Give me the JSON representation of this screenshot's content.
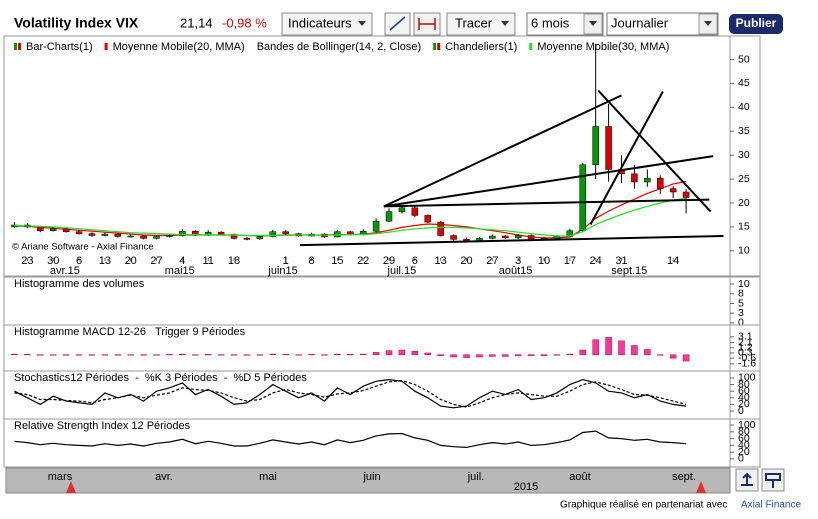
{
  "toolbar": {
    "title": "Volatility Index VIX",
    "last": "21,14",
    "change": "-0,98 %",
    "indicators_button": "Indicateurs",
    "draw_button": "Tracer",
    "period": "6 mois",
    "interval": "Journalier",
    "publish": "Publier"
  },
  "chart_data": [
    {
      "type": "candlestick",
      "copyright": "© Ariane Software - Axial Finance",
      "xlim": [
        -0.5,
        55.4
      ],
      "ylim": [
        8.5,
        54.5
      ],
      "yticks": [
        10,
        15,
        20,
        25,
        30,
        35,
        40,
        45,
        50
      ],
      "xticks": [
        {
          "value": 1,
          "label": "23"
        },
        {
          "value": 3,
          "label": "30"
        },
        {
          "value": 5,
          "label": "6"
        },
        {
          "value": 7,
          "label": "13"
        },
        {
          "value": 9,
          "label": "20"
        },
        {
          "value": 11,
          "label": "27"
        },
        {
          "value": 13,
          "label": "4"
        },
        {
          "value": 15,
          "label": "11"
        },
        {
          "value": 17,
          "label": "18"
        },
        {
          "value": 21,
          "label": "1"
        },
        {
          "value": 23,
          "label": "8"
        },
        {
          "value": 25,
          "label": "15"
        },
        {
          "value": 27,
          "label": "22"
        },
        {
          "value": 29,
          "label": "29"
        },
        {
          "value": 31,
          "label": "6"
        },
        {
          "value": 33,
          "label": "13"
        },
        {
          "value": 35,
          "label": "20"
        },
        {
          "value": 37,
          "label": "27"
        },
        {
          "value": 39,
          "label": "3"
        },
        {
          "value": 41,
          "label": "10"
        },
        {
          "value": 43,
          "label": "17"
        },
        {
          "value": 45,
          "label": "24"
        },
        {
          "value": 47,
          "label": "31"
        },
        {
          "value": 51,
          "label": "14"
        }
      ],
      "month_ticks": [
        {
          "value": 3.9,
          "label": "avr.15"
        },
        {
          "value": 12.8,
          "label": "mai15"
        },
        {
          "value": 20.8,
          "label": "juin15"
        },
        {
          "value": 30,
          "label": "juil.15"
        },
        {
          "value": 38.8,
          "label": "août15"
        },
        {
          "value": 47.6,
          "label": "sept.15"
        }
      ],
      "series": [
        {
          "name": "Bar-Charts(1)",
          "colors": [
            "#009900",
            "#dd0000"
          ]
        },
        {
          "name": "Moyenne Mobile(20, MMA)",
          "color": "#ee0000",
          "values": [
            15.2,
            15.1,
            14.9,
            14.7,
            14.5,
            14.3,
            14.1,
            13.9,
            13.7,
            13.5,
            13.3,
            13.2,
            13.2,
            13.3,
            13.3,
            13.3,
            13.3,
            13.3,
            13.2,
            13.1,
            13.2,
            13.3,
            13.3,
            13.3,
            13.3,
            13.4,
            13.4,
            13.5,
            13.8,
            14.3,
            14.9,
            15.3,
            15.6,
            15.5,
            15.3,
            15.0,
            14.6,
            14.2,
            13.8,
            13.3,
            12.9,
            12.7,
            12.7,
            12.9,
            14.5,
            16.8,
            18.3,
            19.6,
            20.8,
            22.0,
            23.0,
            24.0,
            24.5
          ]
        },
        {
          "name": "Bandes de Bollinger(14, 2, Close)"
        },
        {
          "name": "Chandeliers(1)",
          "colors": [
            "#009900",
            "#dd0000"
          ],
          "open": [
            15.0,
            15.4,
            15.0,
            14.2,
            14.6,
            14.0,
            13.6,
            13.2,
            13.5,
            13.0,
            13.1,
            12.6,
            13.0,
            13.2,
            14.1,
            13.3,
            13.9,
            13.4,
            12.6,
            12.5,
            13.0,
            14.0,
            13.6,
            13.1,
            13.5,
            12.9,
            14.0,
            13.4,
            14.1,
            16.2,
            18.2,
            19.0,
            17.4,
            16.0,
            13.2,
            12.4,
            12.1,
            12.6,
            13.1,
            12.7,
            13.2,
            12.5,
            12.6,
            13.0,
            14.2,
            28.0,
            36.0,
            27.0,
            26.1,
            24.4,
            25.2,
            23.0,
            22.3
          ],
          "high": [
            16.0,
            15.8,
            15.3,
            14.9,
            14.9,
            14.3,
            13.9,
            13.8,
            13.7,
            13.4,
            13.3,
            13.3,
            13.5,
            14.5,
            14.3,
            14.3,
            14.1,
            13.6,
            12.9,
            13.3,
            14.4,
            14.3,
            13.8,
            13.8,
            13.7,
            14.4,
            14.2,
            14.5,
            16.8,
            18.9,
            19.5,
            19.3,
            17.6,
            16.2,
            13.4,
            12.8,
            12.9,
            13.4,
            13.3,
            13.5,
            13.4,
            12.9,
            13.3,
            14.6,
            28.4,
            53.3,
            40.7,
            30.0,
            28.0,
            27.0,
            25.8,
            23.5,
            22.9
          ],
          "low": [
            14.8,
            14.7,
            13.9,
            14.0,
            13.8,
            13.4,
            12.9,
            13.0,
            12.8,
            12.8,
            12.4,
            12.4,
            12.8,
            13.0,
            13.1,
            13.1,
            13.2,
            12.4,
            12.2,
            12.3,
            12.8,
            13.4,
            12.9,
            13.0,
            12.7,
            12.8,
            13.2,
            13.2,
            13.9,
            16.0,
            17.8,
            17.1,
            15.8,
            13.0,
            12.1,
            11.9,
            11.9,
            12.4,
            12.5,
            12.5,
            12.3,
            12.3,
            12.4,
            12.9,
            14.0,
            25.0,
            24.5,
            24.2,
            23.0,
            23.4,
            21.9,
            21.0,
            17.8
          ],
          "close": [
            15.4,
            15.0,
            14.2,
            14.6,
            14.0,
            13.6,
            13.2,
            13.5,
            13.0,
            13.1,
            12.6,
            13.0,
            13.2,
            14.1,
            13.3,
            13.9,
            13.4,
            12.6,
            12.5,
            13.0,
            14.0,
            13.6,
            13.1,
            13.5,
            12.9,
            14.0,
            13.4,
            14.1,
            16.2,
            18.2,
            19.0,
            17.4,
            16.0,
            13.2,
            12.4,
            12.1,
            12.6,
            13.1,
            12.7,
            13.2,
            12.5,
            12.6,
            13.0,
            14.2,
            28.0,
            36.0,
            27.0,
            26.1,
            24.4,
            25.2,
            23.0,
            22.3,
            21.14
          ]
        },
        {
          "name": "Moyenne Mobile(30, MMA)",
          "color": "#22dd22",
          "values": [
            15.3,
            15.2,
            15.1,
            15.0,
            14.8,
            14.6,
            14.4,
            14.2,
            14.0,
            13.8,
            13.7,
            13.6,
            13.5,
            13.4,
            13.4,
            13.3,
            13.3,
            13.3,
            13.2,
            13.2,
            13.2,
            13.2,
            13.3,
            13.3,
            13.3,
            13.3,
            13.4,
            13.4,
            13.6,
            13.9,
            14.3,
            14.6,
            14.8,
            14.9,
            14.9,
            14.8,
            14.6,
            14.4,
            14.2,
            13.9,
            13.6,
            13.3,
            13.1,
            13.1,
            14.0,
            15.5,
            16.6,
            17.6,
            18.5,
            19.3,
            20.0,
            20.6,
            21.0
          ]
        }
      ],
      "trendline_color": "#000000",
      "trendlines": [
        {
          "x": [
            28.6,
            47.0
          ],
          "y": [
            19.3,
            42.5
          ]
        },
        {
          "x": [
            28.6,
            54.1
          ],
          "y": [
            19.3,
            29.8
          ]
        },
        {
          "x": [
            28.6,
            53.8
          ],
          "y": [
            19.3,
            20.7
          ]
        },
        {
          "x": [
            22.1,
            54.9
          ],
          "y": [
            11.2,
            13.1
          ]
        },
        {
          "x": [
            44.6,
            50.2
          ],
          "y": [
            15.5,
            43.3
          ]
        },
        {
          "x": [
            45.2,
            53.9
          ],
          "y": [
            43.5,
            18.2
          ]
        }
      ]
    },
    {
      "type": "bar",
      "title": "Histogramme des volumes",
      "ylim": [
        -0.8,
        11.3
      ],
      "yticks": [
        0,
        {
          "value": 2.5,
          "label": "3"
        },
        5,
        {
          "value": 7.5,
          "label": "8"
        },
        10
      ],
      "zero_line_color": "#cc0000"
    },
    {
      "type": "bar",
      "title": "Histogramme MACD 12-26   Trigger 9 Périodes",
      "ylim": [
        -3.0,
        4.8
      ],
      "yticks": [
        -1.6,
        -0.6,
        0.3,
        1.2,
        2.1,
        3.1
      ],
      "color": "#ff3399",
      "values": [
        0.1,
        0.05,
        -0.1,
        -0.05,
        -0.1,
        -0.1,
        -0.05,
        0.0,
        -0.05,
        0.0,
        -0.05,
        0.0,
        0.05,
        0.1,
        0.0,
        0.05,
        0.0,
        -0.05,
        -0.1,
        0.0,
        0.1,
        0.05,
        0.0,
        0.05,
        -0.05,
        0.1,
        0.05,
        0.1,
        0.4,
        0.7,
        0.8,
        0.6,
        0.3,
        -0.2,
        -0.4,
        -0.5,
        -0.4,
        -0.3,
        -0.3,
        -0.2,
        -0.2,
        -0.2,
        -0.1,
        0.1,
        0.8,
        2.6,
        3.0,
        2.4,
        1.6,
        0.9,
        0.0,
        -0.6,
        -1.1
      ]
    },
    {
      "type": "line",
      "title": "Stochastics12 Périodes  -  %K 3 Périodes  -  %D 5 Périodes",
      "ylim": [
        -27,
        115
      ],
      "yticks": [
        0,
        20,
        40,
        60,
        80,
        100
      ],
      "series": [
        {
          "color": "#000000",
          "dashed": false,
          "values": [
            60,
            40,
            20,
            45,
            30,
            25,
            20,
            55,
            40,
            50,
            30,
            60,
            70,
            85,
            50,
            65,
            45,
            20,
            25,
            50,
            80,
            60,
            40,
            55,
            30,
            70,
            50,
            75,
            90,
            95,
            90,
            60,
            40,
            15,
            10,
            15,
            40,
            60,
            50,
            65,
            35,
            40,
            55,
            80,
            95,
            85,
            60,
            55,
            40,
            50,
            30,
            20,
            15
          ]
        },
        {
          "color": "#000000",
          "dashed": true,
          "values": [
            55,
            50,
            35,
            35,
            32,
            30,
            25,
            35,
            40,
            48,
            40,
            48,
            55,
            70,
            65,
            62,
            55,
            40,
            30,
            35,
            55,
            65,
            55,
            50,
            42,
            52,
            55,
            62,
            75,
            88,
            92,
            80,
            60,
            35,
            20,
            12,
            25,
            40,
            50,
            55,
            50,
            45,
            45,
            60,
            80,
            88,
            78,
            65,
            50,
            48,
            40,
            30,
            20
          ]
        }
      ]
    },
    {
      "type": "line",
      "title": "Relative Strength Index 12 Périodes",
      "ylim": [
        -24,
        112
      ],
      "yticks": [
        0,
        20,
        40,
        60,
        80,
        100
      ],
      "series": [
        {
          "color": "#000000",
          "dashed": false,
          "values": [
            52,
            48,
            42,
            46,
            42,
            40,
            38,
            45,
            40,
            44,
            38,
            46,
            50,
            58,
            45,
            52,
            46,
            38,
            38,
            46,
            56,
            50,
            44,
            50,
            42,
            56,
            48,
            55,
            68,
            74,
            75,
            62,
            55,
            40,
            36,
            34,
            42,
            48,
            44,
            50,
            40,
            42,
            48,
            56,
            78,
            82,
            62,
            60,
            55,
            58,
            50,
            48,
            45
          ]
        }
      ]
    }
  ],
  "navigator": {
    "months": [
      "mars",
      "avr.",
      "mai",
      "juin",
      "juil.",
      "août",
      "sept."
    ],
    "year": "2015"
  },
  "footer": {
    "text": "Graphique réalisé en partenariat avec",
    "link": "Axial Finance"
  }
}
